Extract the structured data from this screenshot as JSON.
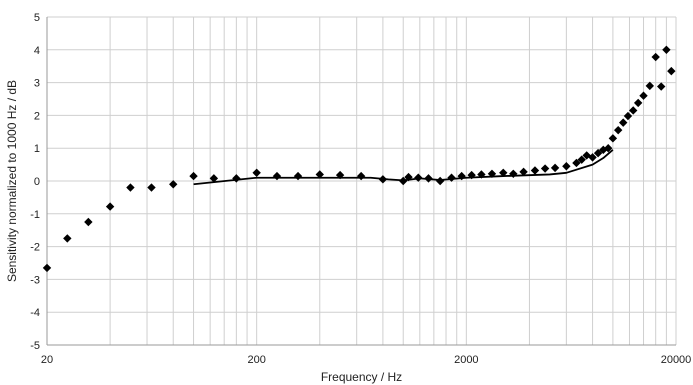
{
  "chart_data": {
    "type": "scatter",
    "xlabel": "Frequency / Hz",
    "ylabel": "Sensitivity  normalized to 1000 Hz / dB",
    "xscale": "log",
    "xlim": [
      20,
      20000
    ],
    "ylim": [
      -5,
      5
    ],
    "grid": "on",
    "x_tick_labels": [
      "20",
      "200",
      "2000",
      "20000"
    ],
    "y_tick_labels": [
      "5",
      "4",
      "3",
      "2",
      "1",
      "0",
      "-1",
      "-2",
      "-3",
      "-4",
      "-5"
    ],
    "colors": {
      "markers": "#000000",
      "line": "#000000",
      "grid": "#cfcfcf"
    },
    "series": [
      {
        "kind": "markers",
        "points": [
          [
            20,
            -2.65
          ],
          [
            25,
            -1.75
          ],
          [
            31.5,
            -1.25
          ],
          [
            40,
            -0.78
          ],
          [
            50,
            -0.2
          ],
          [
            63,
            -0.2
          ],
          [
            80,
            -0.1
          ],
          [
            100,
            0.15
          ],
          [
            125,
            0.08
          ],
          [
            160,
            0.08
          ],
          [
            200,
            0.25
          ],
          [
            250,
            0.15
          ],
          [
            315,
            0.15
          ],
          [
            400,
            0.2
          ],
          [
            500,
            0.18
          ],
          [
            630,
            0.15
          ],
          [
            800,
            0.05
          ],
          [
            1000,
            0.0
          ],
          [
            1060,
            0.12
          ],
          [
            1180,
            0.1
          ],
          [
            1320,
            0.08
          ],
          [
            1500,
            0.0
          ],
          [
            1700,
            0.1
          ],
          [
            1900,
            0.15
          ],
          [
            2120,
            0.18
          ],
          [
            2360,
            0.2
          ],
          [
            2650,
            0.22
          ],
          [
            3000,
            0.25
          ],
          [
            3350,
            0.22
          ],
          [
            3750,
            0.28
          ],
          [
            4250,
            0.32
          ],
          [
            4750,
            0.38
          ],
          [
            5300,
            0.4
          ],
          [
            6000,
            0.45
          ],
          [
            6700,
            0.55
          ],
          [
            7100,
            0.65
          ],
          [
            7500,
            0.78
          ],
          [
            8000,
            0.72
          ],
          [
            8500,
            0.85
          ],
          [
            9000,
            0.95
          ],
          [
            9500,
            1.0
          ],
          [
            10000,
            1.3
          ],
          [
            10600,
            1.55
          ],
          [
            11200,
            1.78
          ],
          [
            11800,
            1.98
          ],
          [
            12500,
            2.15
          ],
          [
            13200,
            2.38
          ],
          [
            14000,
            2.6
          ],
          [
            15000,
            2.9
          ],
          [
            16000,
            3.78
          ],
          [
            17000,
            2.88
          ],
          [
            18000,
            4.0
          ],
          [
            19000,
            3.35
          ]
        ]
      },
      {
        "kind": "line",
        "points": [
          [
            100,
            -0.1
          ],
          [
            200,
            0.1
          ],
          [
            400,
            0.1
          ],
          [
            700,
            0.1
          ],
          [
            850,
            0.05
          ],
          [
            1000,
            0.02
          ],
          [
            1200,
            0.08
          ],
          [
            1500,
            0.03
          ],
          [
            2000,
            0.1
          ],
          [
            3000,
            0.15
          ],
          [
            5000,
            0.2
          ],
          [
            6000,
            0.25
          ],
          [
            8000,
            0.5
          ],
          [
            9000,
            0.7
          ],
          [
            10000,
            0.95
          ]
        ]
      }
    ]
  }
}
